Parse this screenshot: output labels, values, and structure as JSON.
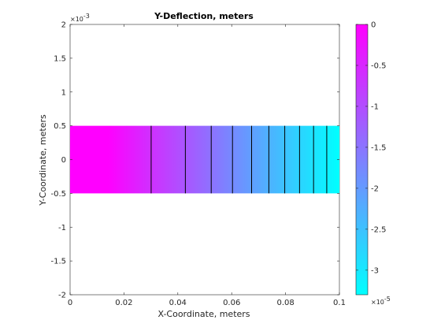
{
  "chart_data": {
    "type": "heatmap",
    "title": "Y-Deflection, meters",
    "xlabel": "X-Coordinate, meters",
    "ylabel": "Y-Coordinate, meters",
    "xlim": [
      0,
      0.1
    ],
    "ylim": [
      -0.002,
      0.002
    ],
    "x_ticks": [
      "0",
      "0.02",
      "0.04",
      "0.06",
      "0.08",
      "0.1"
    ],
    "y_ticks": [
      "2",
      "1.5",
      "1",
      "0.5",
      "0",
      "-0.5",
      "-1",
      "-1.5",
      "-2"
    ],
    "y_exponent": "×10",
    "y_exponent_power": "-3",
    "domain": {
      "x": [
        0,
        0.1
      ],
      "y": [
        -0.0005,
        0.0005
      ]
    },
    "colorbar": {
      "range": [
        -3.3e-05,
        0
      ],
      "ticks": [
        "0",
        "-0.5",
        "-1",
        "-1.5",
        "-2",
        "-2.5",
        "-3"
      ],
      "exponent": "×10",
      "exponent_power": "-5",
      "colormap": "cool",
      "color_at_max": "#ff00ff",
      "color_at_min": "#00ffff"
    },
    "contour_lines_x": [
      0.0301,
      0.0428,
      0.0524,
      0.0603,
      0.0674,
      0.0738,
      0.0797,
      0.0852,
      0.0904,
      0.0953
    ],
    "grid": false
  }
}
